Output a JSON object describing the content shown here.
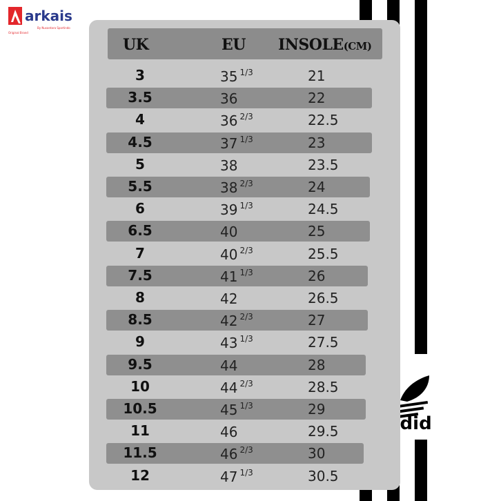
{
  "brand": {
    "name": "arkais",
    "tagline": "By Nusantara Sportindo",
    "sub": "Original Brand",
    "color": "#e3262b",
    "text_color": "#2a3a8c"
  },
  "background_logo": {
    "text": "adidas",
    "icon": "trefoil-icon"
  },
  "table": {
    "headers": {
      "uk": "UK",
      "eu": "EU",
      "insole": "INSOLE",
      "insole_unit": "(CM)"
    },
    "rows": [
      {
        "uk": "3",
        "eu": "35",
        "frac": "1/3",
        "insole": "21"
      },
      {
        "uk": "3.5",
        "eu": "36",
        "frac": "",
        "insole": "22"
      },
      {
        "uk": "4",
        "eu": "36",
        "frac": "2/3",
        "insole": "22.5"
      },
      {
        "uk": "4.5",
        "eu": "37",
        "frac": "1/3",
        "insole": "23"
      },
      {
        "uk": "5",
        "eu": "38",
        "frac": "",
        "insole": "23.5"
      },
      {
        "uk": "5.5",
        "eu": "38",
        "frac": "2/3",
        "insole": "24"
      },
      {
        "uk": "6",
        "eu": "39",
        "frac": "1/3",
        "insole": "24.5"
      },
      {
        "uk": "6.5",
        "eu": "40",
        "frac": "",
        "insole": "25"
      },
      {
        "uk": "7",
        "eu": "40",
        "frac": "2/3",
        "insole": "25.5"
      },
      {
        "uk": "7.5",
        "eu": "41",
        "frac": "1/3",
        "insole": "26"
      },
      {
        "uk": "8",
        "eu": "42",
        "frac": "",
        "insole": "26.5"
      },
      {
        "uk": "8.5",
        "eu": "42",
        "frac": "2/3",
        "insole": "27"
      },
      {
        "uk": "9",
        "eu": "43",
        "frac": "1/3",
        "insole": "27.5"
      },
      {
        "uk": "9.5",
        "eu": "44",
        "frac": "",
        "insole": "28"
      },
      {
        "uk": "10",
        "eu": "44",
        "frac": "2/3",
        "insole": "28.5"
      },
      {
        "uk": "10.5",
        "eu": "45",
        "frac": "1/3",
        "insole": "29"
      },
      {
        "uk": "11",
        "eu": "46",
        "frac": "",
        "insole": "29.5"
      },
      {
        "uk": "11.5",
        "eu": "46",
        "frac": "2/3",
        "insole": "30"
      },
      {
        "uk": "12",
        "eu": "47",
        "frac": "1/3",
        "insole": "30.5"
      }
    ]
  }
}
